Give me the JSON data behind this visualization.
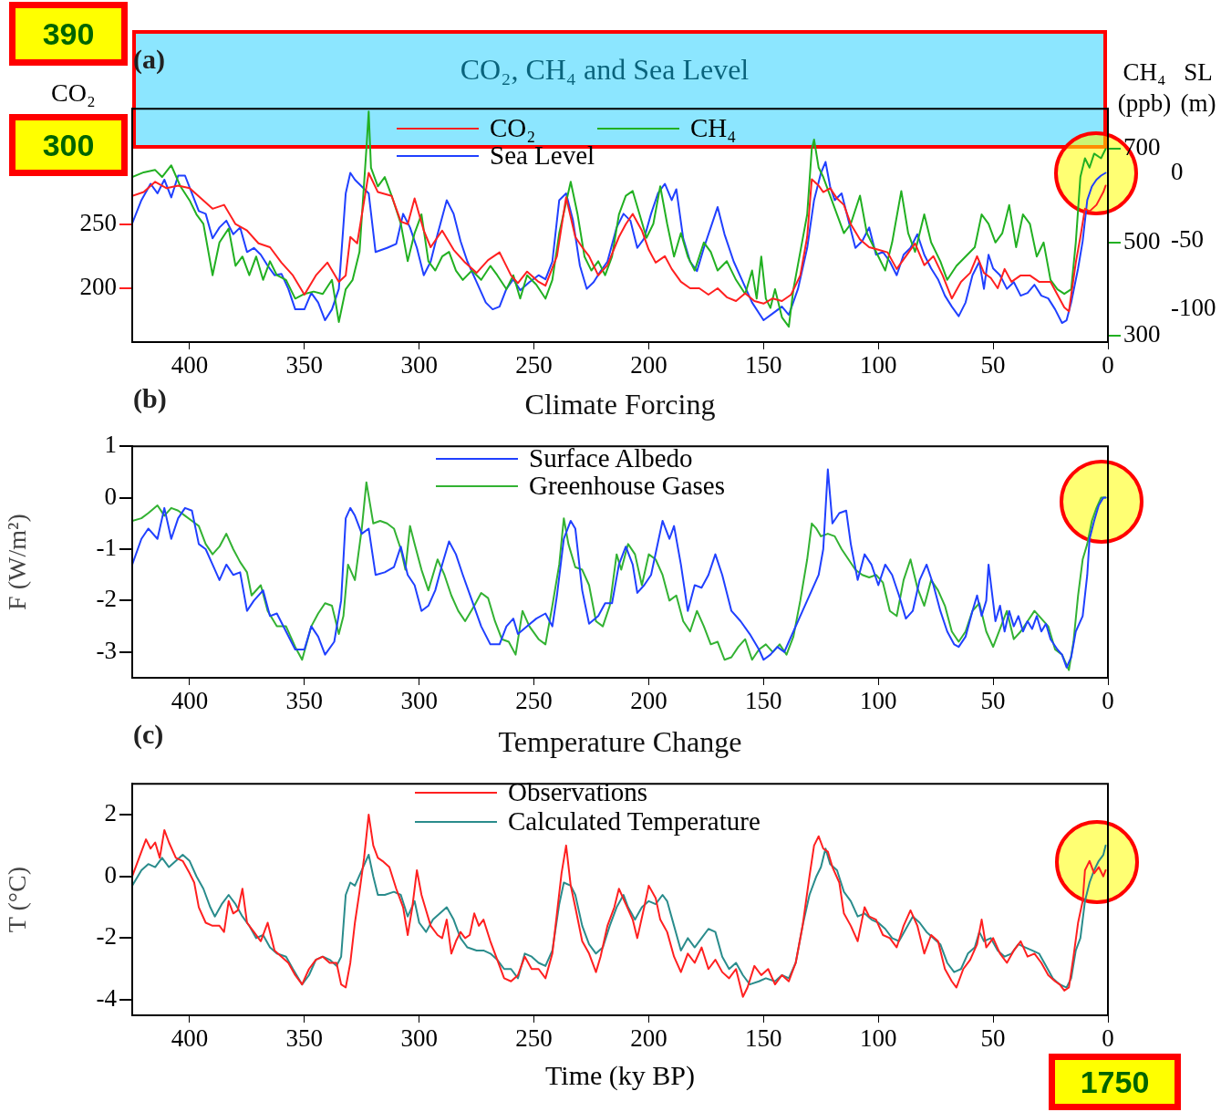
{
  "chart_data": [
    {
      "type": "line",
      "title": "CO₂, CH₄ and Sea Level",
      "ylabel": "CO₂",
      "y2label": "CH₄ (ppb)",
      "y3label": "SL (m)",
      "annotations": [
        "(a)",
        "390",
        "300"
      ],
      "legend": "top",
      "xlim": [
        425,
        0
      ],
      "xticks": [
        400,
        350,
        300,
        250,
        200,
        150,
        100,
        50,
        0
      ],
      "ylim": [
        158,
        340
      ],
      "yticks": [
        200,
        250
      ],
      "y2lim": [
        287,
        786
      ],
      "y2ticks": [
        300,
        500,
        700
      ],
      "y3lim": [
        -124,
        47
      ],
      "y3ticks": [
        -100,
        -50,
        0
      ],
      "series": [
        {
          "name": "CO₂",
          "color": "#ff2020",
          "x": [
            425,
            420,
            415,
            410,
            405,
            400,
            395,
            390,
            385,
            380,
            375,
            370,
            365,
            360,
            355,
            350,
            345,
            340,
            335,
            332,
            330,
            327,
            322,
            318,
            312,
            308,
            305,
            302,
            298,
            295,
            290,
            285,
            280,
            275,
            270,
            265,
            260,
            257,
            253,
            248,
            245,
            240,
            236,
            232,
            229,
            226,
            222,
            218,
            213,
            210,
            207,
            203,
            200,
            197,
            193,
            190,
            186,
            182,
            178,
            174,
            170,
            166,
            162,
            158,
            154,
            150,
            146,
            142,
            138,
            134,
            131,
            129,
            126,
            124,
            121,
            118,
            115,
            112,
            108,
            104,
            100,
            96,
            92,
            88,
            84,
            80,
            76,
            72,
            68,
            64,
            60,
            57,
            54,
            51,
            48,
            45,
            42,
            38,
            34,
            30,
            25,
            22,
            19,
            17,
            14,
            12,
            10,
            8,
            5,
            2,
            1
          ],
          "values": [
            272,
            275,
            283,
            278,
            280,
            278,
            270,
            262,
            265,
            250,
            245,
            235,
            232,
            220,
            210,
            195,
            210,
            220,
            205,
            210,
            240,
            235,
            290,
            275,
            272,
            252,
            250,
            270,
            245,
            232,
            245,
            230,
            220,
            212,
            222,
            228,
            210,
            204,
            213,
            205,
            202,
            225,
            271,
            240,
            232,
            225,
            210,
            218,
            240,
            250,
            258,
            245,
            230,
            220,
            225,
            215,
            205,
            200,
            200,
            195,
            200,
            193,
            190,
            196,
            190,
            188,
            192,
            190,
            195,
            210,
            240,
            285,
            280,
            275,
            278,
            270,
            265,
            250,
            238,
            232,
            230,
            228,
            215,
            225,
            235,
            218,
            225,
            210,
            192,
            205,
            212,
            225,
            212,
            208,
            200,
            215,
            205,
            210,
            210,
            205,
            205,
            195,
            185,
            182,
            220,
            240,
            262,
            260,
            265,
            275,
            280
          ]
        },
        {
          "name": "CH₄",
          "color": "#22b022",
          "axis": "y2",
          "x": [
            425,
            420,
            415,
            412,
            408,
            404,
            400,
            397,
            394,
            390,
            387,
            383,
            380,
            377,
            374,
            371,
            368,
            365,
            362,
            358,
            354,
            350,
            346,
            342,
            338,
            335,
            332,
            329,
            326,
            323,
            322,
            321,
            318,
            315,
            312,
            308,
            305,
            302,
            299,
            296,
            293,
            290,
            287,
            284,
            281,
            277,
            273,
            269,
            266,
            262,
            259,
            256,
            253,
            249,
            245,
            242,
            239,
            234,
            231,
            228,
            225,
            222,
            219,
            216,
            213,
            210,
            207,
            204,
            201,
            198,
            195,
            192,
            189,
            186,
            183,
            180,
            176,
            173,
            170,
            166,
            162,
            158,
            155,
            153,
            151,
            149,
            147,
            145,
            142,
            139,
            137,
            134,
            131,
            129,
            128,
            126,
            124,
            121,
            118,
            115,
            112,
            108,
            105,
            101,
            97,
            94,
            90,
            87,
            84,
            80,
            77,
            73,
            70,
            66,
            62,
            58,
            55,
            52,
            49,
            46,
            43,
            40,
            37,
            34,
            31,
            28,
            25,
            22,
            19,
            16,
            14,
            12,
            10,
            8,
            6,
            3,
            1
          ],
          "values": [
            640,
            650,
            655,
            640,
            665,
            620,
            590,
            560,
            540,
            430,
            500,
            530,
            450,
            470,
            430,
            470,
            420,
            460,
            430,
            420,
            380,
            390,
            395,
            390,
            420,
            330,
            400,
            420,
            480,
            700,
            780,
            660,
            620,
            640,
            600,
            540,
            460,
            520,
            560,
            460,
            440,
            470,
            480,
            440,
            420,
            440,
            420,
            450,
            430,
            400,
            430,
            380,
            430,
            410,
            380,
            420,
            520,
            630,
            560,
            470,
            440,
            460,
            430,
            470,
            560,
            600,
            610,
            560,
            510,
            540,
            620,
            540,
            470,
            520,
            470,
            440,
            500,
            480,
            440,
            460,
            420,
            390,
            440,
            380,
            470,
            380,
            360,
            400,
            340,
            320,
            400,
            480,
            560,
            700,
            720,
            660,
            640,
            600,
            560,
            520,
            540,
            600,
            520,
            480,
            440,
            500,
            610,
            520,
            480,
            560,
            500,
            460,
            420,
            450,
            470,
            490,
            560,
            540,
            500,
            520,
            580,
            490,
            560,
            540,
            470,
            500,
            420,
            400,
            390,
            400,
            500,
            640,
            680,
            660,
            690,
            680,
            700
          ]
        },
        {
          "name": "Sea Level",
          "color": "#2040ff",
          "axis": "y3",
          "x": [
            425,
            421,
            417,
            414,
            411,
            408,
            405,
            402,
            399,
            396,
            393,
            390,
            387,
            384,
            381,
            378,
            375,
            372,
            369,
            366,
            363,
            360,
            357,
            354,
            350,
            347,
            344,
            341,
            338,
            335,
            332,
            330,
            328,
            325,
            322,
            319,
            314,
            310,
            307,
            304,
            301,
            298,
            295,
            292,
            288,
            285,
            282,
            279,
            275,
            271,
            268,
            265,
            262,
            259,
            256,
            252,
            248,
            245,
            242,
            239,
            236,
            233,
            230,
            227,
            224,
            221,
            218,
            214,
            211,
            208,
            205,
            202,
            199,
            196,
            193,
            190,
            188,
            185,
            182,
            179,
            176,
            173,
            170,
            167,
            163,
            159,
            155,
            150,
            146,
            142,
            139,
            135,
            131,
            128,
            125,
            123,
            121,
            119,
            116,
            113,
            110,
            107,
            104,
            101,
            98,
            95,
            92,
            89,
            86,
            83,
            80,
            77,
            74,
            71,
            68,
            65,
            62,
            59,
            56,
            54,
            52,
            50,
            47,
            44,
            41,
            38,
            35,
            32,
            29,
            26,
            23,
            20,
            18,
            16,
            13,
            11,
            9,
            7,
            5,
            3,
            1
          ],
          "values": [
            -37,
            -20,
            -8,
            -15,
            -5,
            -18,
            -2,
            -2,
            -15,
            -28,
            -30,
            -48,
            -40,
            -35,
            -45,
            -40,
            -58,
            -55,
            -60,
            -68,
            -75,
            -74,
            -85,
            -100,
            -100,
            -88,
            -95,
            -108,
            -100,
            -85,
            -15,
            0,
            -5,
            -10,
            -15,
            -58,
            -55,
            -52,
            -30,
            -40,
            -55,
            -75,
            -65,
            -45,
            -20,
            -30,
            -50,
            -65,
            -80,
            -95,
            -100,
            -98,
            -85,
            -78,
            -86,
            -80,
            -75,
            -78,
            -65,
            -20,
            -15,
            -35,
            -68,
            -85,
            -80,
            -72,
            -65,
            -40,
            -30,
            -35,
            -55,
            -48,
            -30,
            -15,
            -8,
            -20,
            -12,
            -48,
            -65,
            -72,
            -55,
            -40,
            -25,
            -45,
            -65,
            -80,
            -95,
            -108,
            -103,
            -98,
            -104,
            -85,
            -55,
            -20,
            0,
            8,
            -10,
            -20,
            -15,
            -35,
            -55,
            -50,
            -40,
            -60,
            -58,
            -65,
            -75,
            -60,
            -55,
            -45,
            -60,
            -70,
            -78,
            -90,
            -98,
            -105,
            -95,
            -75,
            -65,
            -85,
            -60,
            -70,
            -75,
            -85,
            -80,
            -90,
            -88,
            -82,
            -90,
            -92,
            -100,
            -110,
            -108,
            -95,
            -70,
            -50,
            -20,
            -10,
            -5,
            -2,
            0
          ]
        }
      ]
    },
    {
      "type": "line",
      "title": "Climate Forcing",
      "ylabel": "F (W/m²)",
      "annotations": [
        "(b)"
      ],
      "legend": "top",
      "xlim": [
        425,
        0
      ],
      "xticks": [
        400,
        350,
        300,
        250,
        200,
        150,
        100,
        50,
        0
      ],
      "ylim": [
        -3.5,
        1
      ],
      "yticks": [
        -3,
        -2,
        -1,
        0,
        1
      ],
      "series": [
        {
          "name": "Surface Albedo",
          "color": "#2040ff",
          "x": [
            425,
            421,
            418,
            414,
            411,
            408,
            405,
            402,
            399,
            396,
            393,
            390,
            387,
            384,
            381,
            378,
            375,
            372,
            368,
            365,
            362,
            358,
            354,
            350,
            347,
            344,
            341,
            337,
            334,
            332,
            330,
            328,
            325,
            322,
            319,
            315,
            311,
            308,
            305,
            302,
            299,
            296,
            293,
            290,
            287,
            284,
            281,
            277,
            273,
            269,
            265,
            262,
            259,
            257,
            253,
            249,
            245,
            242,
            240,
            237,
            234,
            232,
            229,
            226,
            222,
            219,
            216,
            213,
            210,
            207,
            205,
            202,
            199,
            194,
            191,
            189,
            186,
            183,
            180,
            177,
            174,
            171,
            168,
            164,
            160,
            156,
            152,
            150,
            147,
            144,
            141,
            137,
            133,
            129,
            126,
            124,
            122,
            120,
            117,
            114,
            112,
            109,
            106,
            103,
            100,
            97,
            94,
            91,
            88,
            85,
            82,
            79,
            76,
            73,
            70,
            67,
            65,
            62,
            59,
            57,
            55,
            53,
            52,
            49,
            47,
            45,
            43,
            41,
            39,
            37,
            35,
            33,
            31,
            29,
            27,
            25,
            22,
            20,
            18,
            16,
            14,
            11,
            9,
            8,
            6,
            4,
            2,
            1
          ],
          "values": [
            -1.3,
            -0.8,
            -0.6,
            -0.8,
            -0.2,
            -0.8,
            -0.4,
            -0.2,
            -0.25,
            -0.9,
            -1.0,
            -1.3,
            -1.6,
            -1.3,
            -1.5,
            -1.45,
            -2.2,
            -2.0,
            -1.8,
            -2.3,
            -2.25,
            -2.6,
            -2.95,
            -2.95,
            -2.5,
            -2.7,
            -3.05,
            -2.8,
            -2.0,
            -0.4,
            -0.2,
            -0.35,
            -0.7,
            -0.6,
            -1.5,
            -1.45,
            -1.35,
            -0.95,
            -1.5,
            -1.7,
            -2.2,
            -2.1,
            -1.8,
            -1.3,
            -0.85,
            -1.1,
            -1.5,
            -2.0,
            -2.5,
            -2.85,
            -2.85,
            -2.5,
            -2.35,
            -2.65,
            -2.5,
            -2.35,
            -2.25,
            -2.5,
            -1.9,
            -0.8,
            -0.45,
            -0.6,
            -1.8,
            -2.45,
            -2.3,
            -2.05,
            -2.05,
            -1.3,
            -0.95,
            -1.3,
            -1.85,
            -1.7,
            -1.5,
            -0.45,
            -0.8,
            -0.55,
            -1.3,
            -2.2,
            -1.7,
            -1.75,
            -1.5,
            -1.1,
            -1.5,
            -2.2,
            -2.4,
            -2.65,
            -2.95,
            -3.15,
            -3.05,
            -2.9,
            -3.0,
            -2.6,
            -2.2,
            -1.8,
            -1.5,
            -1.0,
            0.55,
            -0.5,
            -0.3,
            -0.25,
            -0.9,
            -1.6,
            -1.1,
            -1.3,
            -1.7,
            -1.3,
            -1.5,
            -1.9,
            -2.35,
            -2.2,
            -1.6,
            -1.3,
            -1.7,
            -2.2,
            -2.6,
            -2.85,
            -2.9,
            -2.7,
            -2.2,
            -1.9,
            -2.3,
            -2.0,
            -1.3,
            -2.4,
            -2.1,
            -2.6,
            -2.2,
            -2.5,
            -2.3,
            -2.6,
            -2.4,
            -2.55,
            -2.3,
            -2.6,
            -2.45,
            -2.75,
            -2.95,
            -3.05,
            -3.3,
            -3.1,
            -2.6,
            -2.3,
            -1.5,
            -0.8,
            -0.45,
            -0.15,
            0.0,
            0.0
          ]
        },
        {
          "name": "Greenhouse Gases",
          "color": "#33b233",
          "x": [
            425,
            421,
            418,
            414,
            411,
            408,
            405,
            402,
            399,
            396,
            393,
            390,
            387,
            384,
            381,
            378,
            375,
            373,
            369,
            366,
            362,
            358,
            354,
            351,
            347,
            344,
            341,
            338,
            335,
            333,
            331,
            328,
            325,
            323,
            320,
            317,
            314,
            311,
            308,
            306,
            304,
            302,
            299,
            296,
            292,
            289,
            286,
            283,
            280,
            276,
            273,
            270,
            267,
            264,
            261,
            258,
            255,
            252,
            248,
            245,
            242,
            239,
            237,
            235,
            232,
            229,
            226,
            223,
            220,
            217,
            214,
            212,
            209,
            206,
            203,
            200,
            197,
            194,
            191,
            188,
            185,
            182,
            179,
            176,
            173,
            170,
            167,
            164,
            161,
            158,
            155,
            152,
            149,
            146,
            143,
            140,
            137,
            134,
            131,
            129,
            127,
            125,
            122,
            119,
            116,
            113,
            110,
            107,
            104,
            101,
            98,
            95,
            92,
            89,
            86,
            83,
            80,
            77,
            74,
            71,
            68,
            65,
            62,
            59,
            56,
            53,
            50,
            47,
            44,
            41,
            38,
            35,
            32,
            29,
            26,
            23,
            20,
            17,
            15,
            13,
            11,
            9,
            7,
            5,
            3,
            1
          ],
          "values": [
            -0.45,
            -0.4,
            -0.3,
            -0.15,
            -0.35,
            -0.2,
            -0.25,
            -0.35,
            -0.45,
            -0.55,
            -0.9,
            -1.1,
            -0.95,
            -0.7,
            -1.0,
            -1.25,
            -1.45,
            -1.9,
            -1.7,
            -2.2,
            -2.5,
            -2.5,
            -2.9,
            -3.15,
            -2.5,
            -2.25,
            -2.05,
            -2.1,
            -2.65,
            -2.3,
            -1.3,
            -1.6,
            -0.6,
            0.3,
            -0.5,
            -0.45,
            -0.5,
            -0.6,
            -1.0,
            -1.4,
            -0.55,
            -0.9,
            -1.4,
            -1.8,
            -1.2,
            -1.5,
            -1.9,
            -2.2,
            -2.4,
            -2.1,
            -1.85,
            -1.95,
            -2.4,
            -2.75,
            -2.8,
            -3.05,
            -2.2,
            -2.5,
            -2.75,
            -2.85,
            -2.1,
            -1.3,
            -0.4,
            -0.9,
            -1.35,
            -1.4,
            -1.7,
            -2.4,
            -2.5,
            -2.1,
            -1.1,
            -1.4,
            -0.9,
            -1.1,
            -1.7,
            -1.1,
            -1.2,
            -1.5,
            -2.0,
            -1.9,
            -2.4,
            -2.6,
            -2.2,
            -2.5,
            -2.85,
            -2.8,
            -3.15,
            -3.1,
            -2.9,
            -2.75,
            -3.15,
            -2.95,
            -2.85,
            -3.0,
            -2.85,
            -3.05,
            -2.7,
            -2.0,
            -1.2,
            -0.5,
            -0.6,
            -0.75,
            -0.7,
            -0.75,
            -1.0,
            -1.2,
            -1.4,
            -1.5,
            -1.55,
            -1.5,
            -1.65,
            -2.2,
            -2.3,
            -1.6,
            -1.2,
            -1.75,
            -2.1,
            -1.6,
            -1.8,
            -2.1,
            -2.6,
            -2.8,
            -2.6,
            -2.2,
            -2.05,
            -2.6,
            -2.9,
            -2.55,
            -2.2,
            -2.75,
            -2.6,
            -2.4,
            -2.2,
            -2.35,
            -2.5,
            -2.95,
            -3.05,
            -3.35,
            -2.8,
            -1.9,
            -1.2,
            -0.9,
            -0.45,
            -0.2,
            0.0,
            0.0
          ]
        }
      ]
    },
    {
      "type": "line",
      "title": "Temperature Change",
      "xlabel": "Time (ky BP)",
      "ylabel": "T (°C)",
      "annotations": [
        "(c)",
        "1750"
      ],
      "legend": "top",
      "xlim": [
        425,
        0
      ],
      "xticks": [
        400,
        350,
        300,
        250,
        200,
        150,
        100,
        50,
        0
      ],
      "ylim": [
        -4.5,
        3
      ],
      "yticks": [
        -4,
        -2,
        0,
        2
      ],
      "series": [
        {
          "name": "Observations",
          "color": "#ff2020",
          "x": [
            425,
            422,
            419,
            417,
            415,
            413,
            411,
            409,
            406,
            403,
            400,
            398,
            396,
            393,
            390,
            387,
            385,
            383,
            381,
            379,
            377,
            375,
            372,
            369,
            366,
            363,
            360,
            357,
            354,
            351,
            348,
            345,
            342,
            339,
            336,
            334,
            332,
            330,
            328,
            326,
            324,
            322,
            320,
            318,
            316,
            313,
            310,
            307,
            305,
            303,
            301,
            299,
            297,
            295,
            292,
            290,
            288,
            286,
            284,
            282,
            280,
            278,
            276,
            274,
            272,
            269,
            266,
            263,
            260,
            257,
            254,
            251,
            248,
            245,
            242,
            240,
            238,
            236,
            234,
            232,
            229,
            226,
            223,
            221,
            218,
            215,
            213,
            210,
            207,
            205,
            202,
            200,
            197,
            195,
            192,
            189,
            186,
            183,
            180,
            177,
            174,
            171,
            168,
            165,
            162,
            159,
            157,
            154,
            151,
            148,
            145,
            142,
            139,
            136,
            133,
            130,
            128,
            126,
            124,
            122,
            120,
            117,
            115,
            112,
            109,
            106,
            104,
            101,
            98,
            95,
            92,
            89,
            86,
            83,
            80,
            77,
            74,
            71,
            68,
            66,
            63,
            60,
            57,
            55,
            53,
            50,
            47,
            44,
            41,
            38,
            35,
            32,
            29,
            26,
            23,
            21,
            19,
            17,
            15,
            13,
            11,
            10,
            8,
            6,
            4,
            2,
            1
          ],
          "values": [
            0.0,
            0.6,
            1.2,
            0.9,
            1.1,
            0.6,
            1.5,
            1.1,
            0.6,
            0.5,
            0.1,
            -0.2,
            -1.0,
            -1.5,
            -1.6,
            -1.6,
            -1.8,
            -0.8,
            -1.2,
            -1.1,
            -0.4,
            -1.5,
            -1.8,
            -2.1,
            -1.5,
            -2.4,
            -2.6,
            -2.8,
            -3.2,
            -3.5,
            -3.0,
            -2.7,
            -2.6,
            -2.8,
            -2.8,
            -3.5,
            -3.6,
            -2.8,
            -1.5,
            -0.5,
            0.6,
            2.0,
            1.0,
            0.6,
            0.5,
            0.3,
            -0.4,
            -1.0,
            -1.9,
            -1.0,
            0.2,
            -0.6,
            -1.1,
            -1.6,
            -1.9,
            -2.0,
            -1.4,
            -2.5,
            -2.1,
            -1.8,
            -2.0,
            -1.9,
            -1.2,
            -1.6,
            -1.4,
            -2.1,
            -2.7,
            -3.3,
            -3.4,
            -3.2,
            -2.6,
            -3.0,
            -3.0,
            -3.3,
            -2.5,
            -1.2,
            0.1,
            1.0,
            -0.3,
            -1.0,
            -2.1,
            -2.5,
            -3.1,
            -2.6,
            -1.6,
            -1.0,
            -0.4,
            -0.9,
            -1.4,
            -2.0,
            -1.0,
            -0.3,
            -0.7,
            -1.4,
            -1.8,
            -2.6,
            -3.1,
            -2.5,
            -2.8,
            -2.3,
            -3.0,
            -2.7,
            -3.1,
            -3.3,
            -3.0,
            -3.9,
            -3.6,
            -2.9,
            -3.2,
            -3.0,
            -3.5,
            -3.2,
            -3.4,
            -2.8,
            -1.6,
            0.0,
            1.0,
            1.3,
            0.9,
            0.8,
            0.3,
            -0.2,
            -1.2,
            -1.6,
            -2.1,
            -1.0,
            -1.3,
            -1.4,
            -1.9,
            -2.0,
            -2.3,
            -1.6,
            -1.1,
            -1.6,
            -2.5,
            -1.9,
            -2.1,
            -3.0,
            -3.4,
            -3.6,
            -3.0,
            -2.7,
            -2.2,
            -1.4,
            -2.3,
            -2.0,
            -2.5,
            -2.8,
            -2.4,
            -2.1,
            -2.6,
            -2.5,
            -2.8,
            -3.2,
            -3.4,
            -3.5,
            -3.7,
            -3.6,
            -2.6,
            -1.5,
            -0.8,
            0.2,
            0.5,
            0.1,
            0.3,
            0.0,
            0.2
          ]
        },
        {
          "name": "Calculated Temperature",
          "color": "#2a8c8c",
          "x": [
            425,
            421,
            418,
            415,
            412,
            409,
            406,
            403,
            400,
            397,
            394,
            391,
            389,
            386,
            383,
            380,
            377,
            374,
            371,
            368,
            365,
            362,
            358,
            355,
            351,
            348,
            345,
            342,
            339,
            336,
            334,
            332,
            330,
            328,
            325,
            322,
            320,
            318,
            315,
            311,
            308,
            305,
            302,
            300,
            297,
            294,
            291,
            288,
            285,
            282,
            279,
            275,
            272,
            269,
            266,
            263,
            260,
            257,
            254,
            251,
            248,
            245,
            242,
            239,
            237,
            234,
            232,
            229,
            226,
            223,
            220,
            217,
            214,
            211,
            209,
            206,
            203,
            200,
            197,
            194,
            192,
            189,
            186,
            183,
            180,
            177,
            174,
            171,
            168,
            165,
            162,
            159,
            156,
            152,
            149,
            145,
            142,
            139,
            136,
            133,
            130,
            127,
            125,
            123,
            121,
            118,
            115,
            112,
            109,
            106,
            103,
            100,
            97,
            94,
            91,
            88,
            85,
            82,
            79,
            76,
            73,
            70,
            67,
            64,
            61,
            58,
            56,
            54,
            51,
            48,
            45,
            42,
            39,
            36,
            33,
            30,
            27,
            24,
            21,
            18,
            16,
            14,
            12,
            10,
            8,
            6,
            4,
            2,
            1
          ],
          "values": [
            -0.3,
            0.2,
            0.4,
            0.3,
            0.6,
            0.3,
            0.5,
            0.7,
            0.5,
            0.0,
            -0.4,
            -1.0,
            -1.3,
            -0.9,
            -0.6,
            -0.9,
            -1.3,
            -1.6,
            -2.0,
            -1.9,
            -2.3,
            -2.5,
            -2.6,
            -3.0,
            -3.5,
            -3.2,
            -2.7,
            -2.6,
            -2.7,
            -2.9,
            -2.6,
            -0.6,
            -0.2,
            -0.3,
            0.2,
            0.7,
            0.0,
            -0.6,
            -0.6,
            -0.5,
            -0.6,
            -1.3,
            -0.8,
            -1.5,
            -1.8,
            -1.4,
            -1.2,
            -1.0,
            -1.4,
            -2.0,
            -2.3,
            -2.4,
            -2.4,
            -2.5,
            -2.7,
            -3.0,
            -3.0,
            -3.3,
            -2.5,
            -2.6,
            -2.8,
            -2.9,
            -2.4,
            -0.9,
            -0.2,
            -0.3,
            -0.6,
            -1.6,
            -2.2,
            -2.5,
            -2.3,
            -1.6,
            -1.0,
            -0.6,
            -1.0,
            -1.4,
            -1.0,
            -0.8,
            -0.9,
            -0.6,
            -0.8,
            -1.6,
            -2.4,
            -2.0,
            -2.3,
            -2.0,
            -1.7,
            -1.8,
            -2.6,
            -3.0,
            -2.8,
            -3.2,
            -3.5,
            -3.4,
            -3.3,
            -3.4,
            -3.2,
            -3.3,
            -2.8,
            -1.6,
            -0.6,
            0.0,
            0.3,
            0.9,
            0.4,
            0.2,
            -0.5,
            -0.8,
            -1.3,
            -1.2,
            -1.4,
            -1.5,
            -1.7,
            -2.0,
            -2.1,
            -1.7,
            -1.3,
            -1.5,
            -1.8,
            -2.0,
            -2.2,
            -2.8,
            -3.1,
            -3.0,
            -2.5,
            -2.3,
            -1.8,
            -2.1,
            -2.0,
            -2.4,
            -2.6,
            -2.5,
            -2.2,
            -2.3,
            -2.4,
            -2.5,
            -2.9,
            -3.3,
            -3.5,
            -3.6,
            -3.3,
            -2.4,
            -2.0,
            -0.8,
            -0.2,
            0.2,
            0.5,
            0.7,
            1.0
          ]
        }
      ]
    }
  ]
}
